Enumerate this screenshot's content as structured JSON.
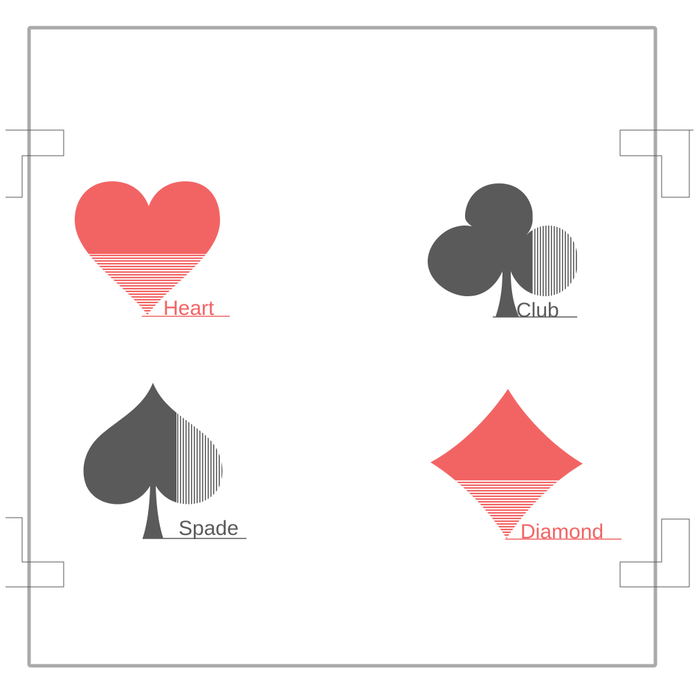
{
  "colors": {
    "red": "#f26464",
    "dark": "#5a5a5a",
    "frame": "#aaaaaa",
    "corner_marks": "#555555"
  },
  "suits": [
    {
      "label": "Heart",
      "icon": "heart-icon",
      "color": "#f26464"
    },
    {
      "label": "Club",
      "icon": "club-icon",
      "color": "#5a5a5a"
    },
    {
      "label": "Spade",
      "icon": "spade-icon",
      "color": "#5a5a5a"
    },
    {
      "label": "Diamond",
      "icon": "diamond-icon",
      "color": "#f26464"
    }
  ]
}
